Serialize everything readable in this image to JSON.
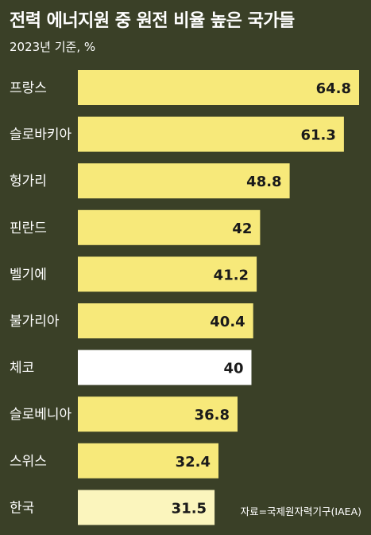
{
  "colors": {
    "background": "#3a4027",
    "bar": "#f7e97a",
    "bar_highlight": "#ffffff",
    "bar_last": "#fbf5bd"
  },
  "chart_data": {
    "type": "bar",
    "orientation": "horizontal",
    "title": "전력 에너지원 중 원전 비율 높은 국가들",
    "subtitle": "2023년 기준, %",
    "categories": [
      "프랑스",
      "슬로바키아",
      "헝가리",
      "핀란드",
      "벨기에",
      "불가리아",
      "체코",
      "슬로베니아",
      "스위스",
      "한국"
    ],
    "values": [
      64.8,
      61.3,
      48.8,
      42,
      41.2,
      40.4,
      40,
      36.8,
      32.4,
      31.5
    ],
    "value_labels": [
      "64.8",
      "61.3",
      "48.8",
      "42",
      "41.2",
      "40.4",
      "40",
      "36.8",
      "32.4",
      "31.5"
    ],
    "highlight_index": 6,
    "xlim": [
      0,
      64.8
    ],
    "grid": false,
    "source": "자료=국제원자력기구(IAEA)"
  }
}
